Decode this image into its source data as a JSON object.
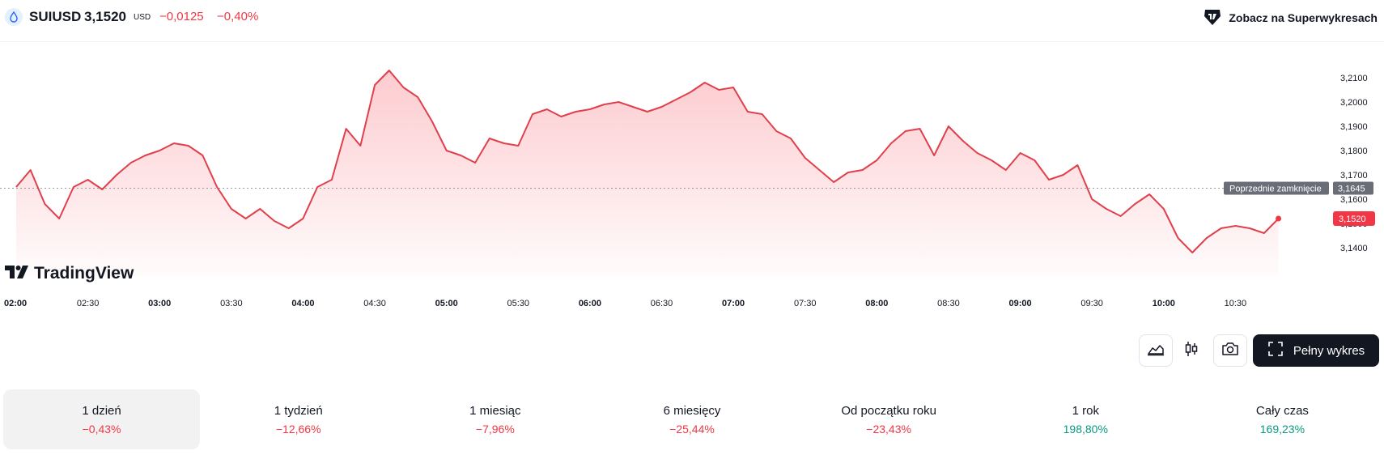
{
  "header": {
    "symbol": "SUIUSD",
    "price": "3,1520",
    "currency": "USD",
    "change_abs": "−0,0125",
    "change_pct": "−0,40%",
    "supercharts_link": "Zobacz na Superwykresach",
    "coin_icon": "sui-drop-icon",
    "link_icon": "tradingview-badge-icon"
  },
  "colors": {
    "negative": "#f23645",
    "positive": "#089981",
    "line": "#e0404c",
    "dark": "#131722"
  },
  "chart_data": {
    "type": "area",
    "x_ticks": [
      "02:00",
      "02:30",
      "03:00",
      "03:30",
      "04:00",
      "04:30",
      "05:00",
      "05:30",
      "06:00",
      "06:30",
      "07:00",
      "07:30",
      "08:00",
      "08:30",
      "09:00",
      "09:30",
      "10:00",
      "10:30"
    ],
    "x_ticks_bold": [
      "02:00",
      "03:00",
      "04:00",
      "05:00",
      "06:00",
      "07:00",
      "08:00",
      "09:00",
      "10:00"
    ],
    "x_tick_hours": [
      2,
      2.5,
      3,
      3.5,
      4,
      4.5,
      5,
      5.5,
      6,
      6.5,
      7,
      7.5,
      8,
      8.5,
      9,
      9.5,
      10,
      10.5
    ],
    "y_ticks": [
      "3,1400",
      "3,1500",
      "3,1600",
      "3,1700",
      "3,1800",
      "3,1900",
      "3,2000",
      "3,2100"
    ],
    "y_tick_values": [
      3.14,
      3.15,
      3.16,
      3.17,
      3.18,
      3.19,
      3.2,
      3.21
    ],
    "previous_close": {
      "label": "Poprzednie zamknięcie",
      "value": 3.1645,
      "text": "3,1645"
    },
    "last_price": {
      "value": 3.152,
      "text": "3,1520"
    },
    "series": [
      {
        "x_hours": [
          2.0,
          2.1,
          2.2,
          2.3,
          2.4,
          2.5,
          2.6,
          2.7,
          2.8,
          2.9,
          3.0,
          3.1,
          3.2,
          3.3,
          3.4,
          3.5,
          3.6,
          3.7,
          3.8,
          3.9,
          4.0,
          4.1,
          4.2,
          4.3,
          4.4,
          4.5,
          4.6,
          4.7,
          4.8,
          4.9,
          5.0,
          5.1,
          5.2,
          5.3,
          5.4,
          5.5,
          5.6,
          5.7,
          5.8,
          5.9,
          6.0,
          6.1,
          6.2,
          6.3,
          6.4,
          6.5,
          6.6,
          6.7,
          6.8,
          6.9,
          7.0,
          7.1,
          7.2,
          7.3,
          7.4,
          7.5,
          7.6,
          7.7,
          7.8,
          7.9,
          8.0,
          8.1,
          8.2,
          8.3,
          8.4,
          8.5,
          8.6,
          8.7,
          8.8,
          8.9,
          9.0,
          9.1,
          9.2,
          9.3,
          9.4,
          9.5,
          9.6,
          9.7,
          9.8,
          9.9,
          10.0,
          10.1,
          10.2,
          10.3,
          10.4,
          10.5,
          10.6,
          10.7,
          10.8
        ],
        "values": [
          3.165,
          3.172,
          3.158,
          3.152,
          3.165,
          3.168,
          3.164,
          3.17,
          3.175,
          3.178,
          3.18,
          3.183,
          3.182,
          3.178,
          3.165,
          3.156,
          3.152,
          3.156,
          3.151,
          3.148,
          3.152,
          3.165,
          3.168,
          3.189,
          3.182,
          3.207,
          3.213,
          3.206,
          3.202,
          3.192,
          3.18,
          3.178,
          3.175,
          3.185,
          3.183,
          3.182,
          3.195,
          3.197,
          3.194,
          3.196,
          3.197,
          3.199,
          3.2,
          3.198,
          3.196,
          3.198,
          3.201,
          3.204,
          3.208,
          3.205,
          3.206,
          3.196,
          3.195,
          3.188,
          3.185,
          3.177,
          3.172,
          3.167,
          3.171,
          3.172,
          3.176,
          3.183,
          3.188,
          3.189,
          3.178,
          3.19,
          3.184,
          3.179,
          3.176,
          3.172,
          3.179,
          3.176,
          3.168,
          3.17,
          3.174,
          3.16,
          3.156,
          3.153,
          3.158,
          3.162,
          3.156,
          3.144,
          3.138,
          3.144,
          3.148,
          3.149,
          3.148,
          3.146,
          3.152
        ]
      }
    ]
  },
  "logo": {
    "text": "TradingView",
    "icon": "tradingview-logo-icon"
  },
  "toolbar": {
    "area_icon": "area-chart-icon",
    "candle_icon": "candlestick-icon",
    "camera_icon": "camera-icon",
    "fullscreen_icon": "fullscreen-icon",
    "full_label": "Pełny wykres"
  },
  "periods": [
    {
      "label": "1 dzień",
      "value": "−0,43%",
      "trend": "neg",
      "active": true
    },
    {
      "label": "1 tydzień",
      "value": "−12,66%",
      "trend": "neg",
      "active": false
    },
    {
      "label": "1 miesiąc",
      "value": "−7,96%",
      "trend": "neg",
      "active": false
    },
    {
      "label": "6 miesięcy",
      "value": "−25,44%",
      "trend": "neg",
      "active": false
    },
    {
      "label": "Od początku roku",
      "value": "−23,43%",
      "trend": "neg",
      "active": false
    },
    {
      "label": "1 rok",
      "value": "198,80%",
      "trend": "pos",
      "active": false
    },
    {
      "label": "Cały czas",
      "value": "169,23%",
      "trend": "pos",
      "active": false
    }
  ]
}
